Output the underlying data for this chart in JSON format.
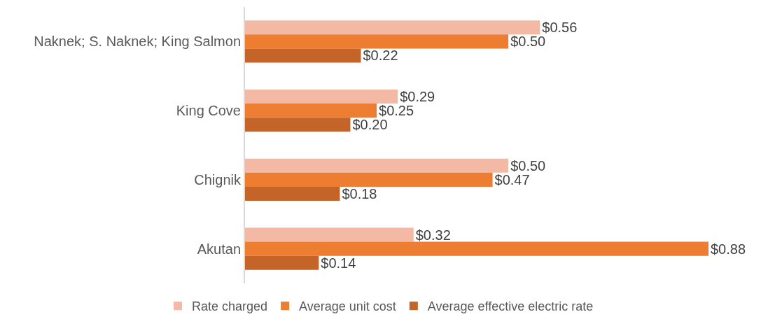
{
  "chart_data": {
    "type": "bar",
    "orientation": "horizontal",
    "categories": [
      "Naknek; S. Naknek; King Salmon",
      "King Cove",
      "Chignik",
      "Akutan"
    ],
    "series": [
      {
        "name": "Rate charged",
        "color": "#f4b9a4",
        "values": [
          0.56,
          0.29,
          0.5,
          0.32
        ],
        "value_labels": [
          "$0.56",
          "$0.29",
          "$0.50",
          "$0.32"
        ]
      },
      {
        "name": "Average unit cost",
        "color": "#ed7d31",
        "values": [
          0.5,
          0.25,
          0.47,
          0.88
        ],
        "value_labels": [
          "$0.50",
          "$0.25",
          "$0.47",
          "$0.88"
        ]
      },
      {
        "name": "Average effective electric rate",
        "color": "#c46428",
        "values": [
          0.22,
          0.2,
          0.18,
          0.14
        ],
        "value_labels": [
          "$0.22",
          "$0.20",
          "$0.18",
          "$0.14"
        ]
      }
    ],
    "legend": "bottom",
    "tick_labels": "y"
  }
}
